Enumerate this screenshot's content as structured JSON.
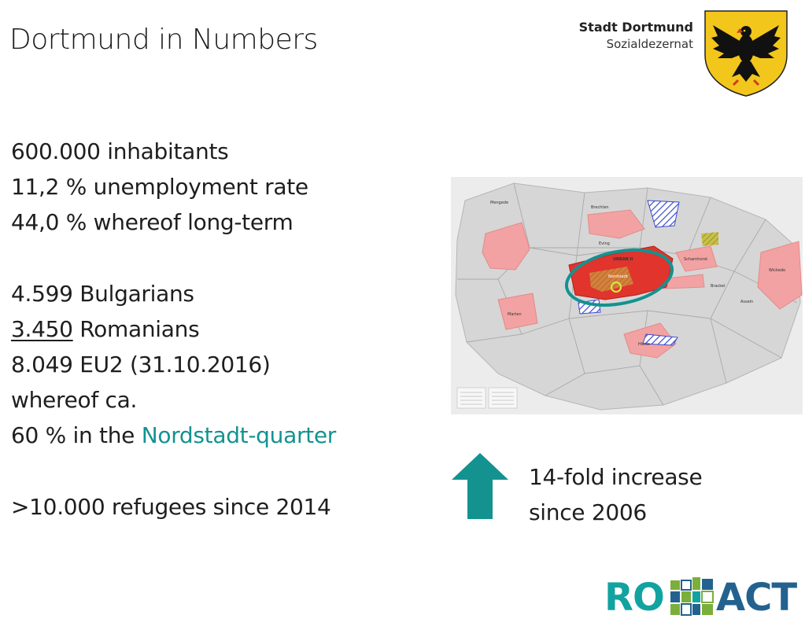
{
  "title": "Dortmund in Numbers",
  "org": {
    "name": "Stadt Dortmund",
    "department": "Sozialdezernat"
  },
  "stats": {
    "inhabitants": "600.000 inhabitants",
    "unemployment": "11,2 % unemployment rate",
    "longterm": "44,0 % whereof long-term",
    "bulgarians": "4.599 Bulgarians",
    "romanians_number": "3.450",
    "romanians_label": " Romanians",
    "eu2": "8.049 EU2 (31.10.2016)",
    "whereof": "whereof ca.",
    "nordstadt_prefix": "60 % in the ",
    "nordstadt_quarter": "Nordstadt-quarter",
    "refugees": ">10.000 refugees since 2014"
  },
  "increase": {
    "line1": "14-fold increase",
    "line2": "since  2006"
  },
  "logo": {
    "ro": "RO",
    "act": "ACT"
  },
  "map_labels": [
    "Mengede",
    "Brechten",
    "Eving",
    "URBAN II",
    "Nordstadt",
    "Wickede",
    "Marten",
    "Hörde",
    "Scharnhorst",
    "Brackel",
    "Asseln"
  ],
  "colors": {
    "teal": "#139290",
    "district_red": "#e94a4a",
    "district_pink": "#f4a3a3"
  },
  "icons": {
    "coat_of_arms": "eagle-coat-of-arms-icon",
    "arrow": "up-arrow-icon"
  }
}
